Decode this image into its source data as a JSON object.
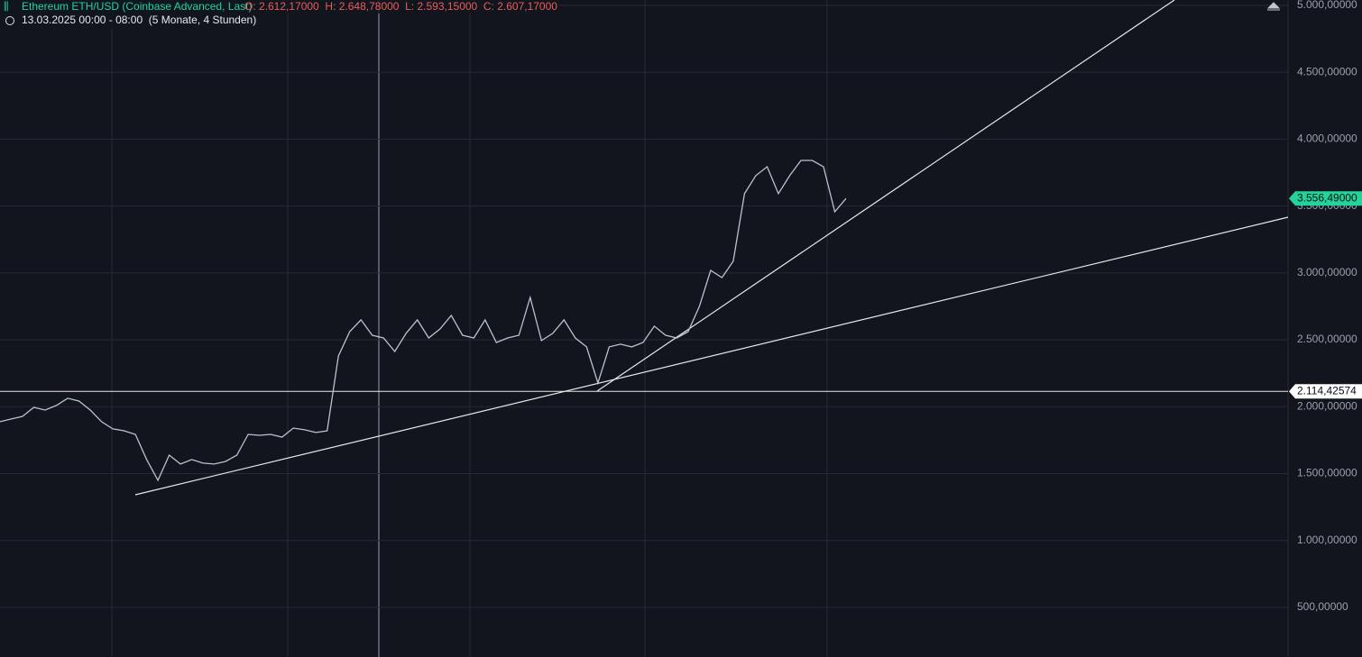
{
  "chart_data": {
    "type": "line",
    "title": "Ethereum ETH/USD (Coinbase Advanced, Last)",
    "ohlc_text": "O: 2.612,17000  H: 2.648,78000  L: 2.593,15000  C: 2.607,17000",
    "subtitle": "13.03.2025 00:00 - 08:00  (5 Monate, 4 Stunden)",
    "color": "#b7c4cc",
    "values": [
      1888,
      1908,
      1928,
      1995,
      1975,
      2009,
      2063,
      2042,
      1975,
      1888,
      1834,
      1820,
      1793,
      1605,
      1450,
      1638,
      1571,
      1605,
      1578,
      1571,
      1591,
      1638,
      1793,
      1786,
      1793,
      1773,
      1840,
      1827,
      1807,
      1820,
      2379,
      2561,
      2649,
      2534,
      2514,
      2413,
      2548,
      2649,
      2514,
      2581,
      2682,
      2534,
      2514,
      2649,
      2480,
      2514,
      2534,
      2817,
      2494,
      2548,
      2649,
      2514,
      2447,
      2177,
      2447,
      2467,
      2447,
      2480,
      2602,
      2534,
      2514,
      2561,
      2750,
      3019,
      2965,
      3087,
      3592,
      3727,
      3794,
      3592,
      3727,
      3841,
      3841,
      3794,
      3457,
      3556.49
    ],
    "ylim": [
      129,
      5040
    ],
    "yticks": [
      {
        "value": 500,
        "label": "500,00000"
      },
      {
        "value": 1000,
        "label": "1.000,00000"
      },
      {
        "value": 1500,
        "label": "1.500,00000"
      },
      {
        "value": 2000,
        "label": "2.000,00000"
      },
      {
        "value": 2500,
        "label": "2.500,00000"
      },
      {
        "value": 3000,
        "label": "3.000,00000"
      },
      {
        "value": 3500,
        "label": "3.500,00000"
      },
      {
        "value": 4000,
        "label": "4.000,00000"
      },
      {
        "value": 4500,
        "label": "4.500,00000"
      },
      {
        "value": 5000,
        "label": "5.000,00000"
      }
    ],
    "grid": true,
    "price_labels": [
      {
        "value": 3556.49,
        "label": "3.556,49000",
        "color": "#22d49a"
      },
      {
        "value": 2114.42574,
        "label": "2.114,42574",
        "color": "#ffffff"
      }
    ]
  }
}
